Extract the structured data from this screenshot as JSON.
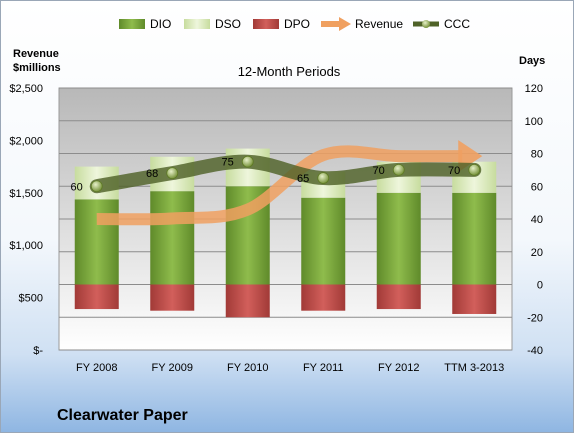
{
  "chart_data": {
    "type": "bar",
    "title": "12-Month Periods",
    "categories": [
      "FY 2008",
      "FY 2009",
      "FY 2010",
      "FY 2011",
      "FY 2012",
      "TTM 3-2013"
    ],
    "left_axis": {
      "label_line1": "Revenue",
      "label_line2": "$millions",
      "ticks": [
        "$-",
        "$500",
        "$1,000",
        "$1,500",
        "$2,000",
        "$2,500"
      ],
      "range": [
        0,
        2500
      ]
    },
    "right_axis": {
      "label": "Days",
      "ticks": [
        "-40",
        "-20",
        "0",
        "20",
        "40",
        "60",
        "80",
        "100",
        "120"
      ],
      "range": [
        -40,
        120
      ]
    },
    "series": [
      {
        "name": "DIO",
        "axis": "right",
        "kind": "stacked-bar",
        "values": [
          52,
          57,
          60,
          53,
          56,
          56
        ],
        "color": "#76a03a"
      },
      {
        "name": "DSO",
        "axis": "right",
        "kind": "stacked-bar",
        "values": [
          20,
          21,
          23,
          16,
          19,
          19
        ],
        "color": "#dfeec3"
      },
      {
        "name": "DPO",
        "axis": "right",
        "kind": "stacked-bar-negative",
        "values": [
          -15,
          -16,
          -20,
          -16,
          -15,
          -18
        ],
        "color": "#c0504d"
      },
      {
        "name": "Revenue",
        "axis": "left",
        "kind": "line",
        "values": [
          1250,
          1255,
          1340,
          1860,
          1850,
          1850
        ],
        "color": "#f0a060"
      },
      {
        "name": "CCC",
        "axis": "right",
        "kind": "line",
        "values": [
          60,
          68,
          75,
          65,
          70,
          70
        ],
        "data_labels": [
          "60",
          "68",
          "75",
          "65",
          "70",
          "70"
        ],
        "color": "#4f6228"
      }
    ],
    "grid": true,
    "legend": "top"
  },
  "company": "Clearwater Paper"
}
